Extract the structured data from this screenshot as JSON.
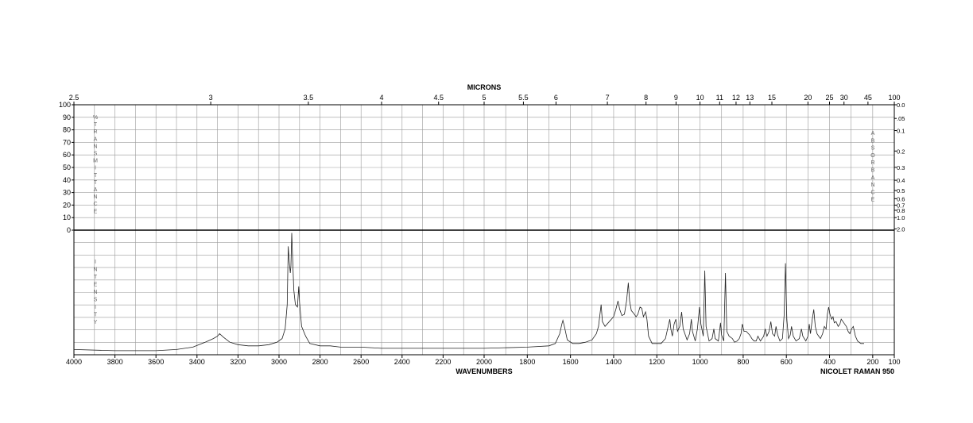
{
  "chart_data": {
    "type": "line",
    "title": "",
    "top_axis": {
      "label": "MICRONS",
      "ticks": [
        {
          "label": "2.5",
          "at": 4000
        },
        {
          "label": "3",
          "at": 3333
        },
        {
          "label": "3.5",
          "at": 2857
        },
        {
          "label": "4",
          "at": 2500
        },
        {
          "label": "4.5",
          "at": 2222
        },
        {
          "label": "5",
          "at": 2000
        },
        {
          "label": "5.5",
          "at": 1818
        },
        {
          "label": "6",
          "at": 1667
        },
        {
          "label": "7",
          "at": 1429
        },
        {
          "label": "8",
          "at": 1250
        },
        {
          "label": "9",
          "at": 1111
        },
        {
          "label": "10",
          "at": 1000
        },
        {
          "label": "11",
          "at": 909
        },
        {
          "label": "12",
          "at": 833
        },
        {
          "label": "13",
          "at": 769
        },
        {
          "label": "15",
          "at": 667
        },
        {
          "label": "20",
          "at": 500
        },
        {
          "label": "25",
          "at": 400
        },
        {
          "label": "30",
          "at": 333
        },
        {
          "label": "45",
          "at": 222
        },
        {
          "label": "100",
          "at": 100
        }
      ]
    },
    "bottom_axis": {
      "label": "WAVENUMBERS",
      "ticks": [
        "4000",
        "3800",
        "3600",
        "3400",
        "3200",
        "3000",
        "2800",
        "2600",
        "2400",
        "2200",
        "2000",
        "1800",
        "1600",
        "1400",
        "1200",
        "1000",
        "800",
        "600",
        "400",
        "200",
        "100"
      ],
      "xlim": [
        4000,
        100
      ]
    },
    "left_axis_upper": {
      "label_letters": [
        "%",
        "T",
        "R",
        "A",
        "N",
        "S",
        "M",
        "I",
        "T",
        "T",
        "A",
        "N",
        "C",
        "E"
      ],
      "ticks": [
        "100",
        "90",
        "80",
        "70",
        "60",
        "50",
        "40",
        "30",
        "20",
        "10",
        "0"
      ],
      "ylim": [
        0,
        100
      ]
    },
    "left_axis_lower": {
      "label_letters": [
        "I",
        "N",
        "T",
        "E",
        "N",
        "S",
        "I",
        "T",
        "Y"
      ]
    },
    "right_axis": {
      "label_letters": [
        "A",
        "B",
        "S",
        "O",
        "R",
        "B",
        "A",
        "N",
        "C",
        "E"
      ],
      "ticks": [
        "0.0",
        ".05",
        "0.1",
        "0.2",
        "0.3",
        "0.4",
        "0.5",
        "0.6",
        "0.7",
        "0.8",
        "1.0",
        "2.0"
      ]
    },
    "instrument": "NICOLET RAMAN 950",
    "grid": true,
    "series": [
      {
        "values_unit": "relative intensity (0-1)",
        "points": [
          [
            4000,
            0.03
          ],
          [
            3800,
            0.02
          ],
          [
            3600,
            0.02
          ],
          [
            3500,
            0.03
          ],
          [
            3420,
            0.05
          ],
          [
            3360,
            0.09
          ],
          [
            3320,
            0.12
          ],
          [
            3300,
            0.14
          ],
          [
            3290,
            0.16
          ],
          [
            3270,
            0.13
          ],
          [
            3240,
            0.09
          ],
          [
            3200,
            0.07
          ],
          [
            3150,
            0.06
          ],
          [
            3100,
            0.06
          ],
          [
            3050,
            0.07
          ],
          [
            3010,
            0.09
          ],
          [
            2985,
            0.12
          ],
          [
            2970,
            0.2
          ],
          [
            2960,
            0.4
          ],
          [
            2955,
            0.88
          ],
          [
            2950,
            0.75
          ],
          [
            2945,
            0.66
          ],
          [
            2942,
            0.72
          ],
          [
            2938,
            0.99
          ],
          [
            2934,
            0.8
          ],
          [
            2928,
            0.52
          ],
          [
            2920,
            0.4
          ],
          [
            2910,
            0.38
          ],
          [
            2904,
            0.55
          ],
          [
            2900,
            0.42
          ],
          [
            2890,
            0.22
          ],
          [
            2870,
            0.14
          ],
          [
            2850,
            0.08
          ],
          [
            2800,
            0.06
          ],
          [
            2750,
            0.06
          ],
          [
            2700,
            0.05
          ],
          [
            2600,
            0.05
          ],
          [
            2500,
            0.04
          ],
          [
            2400,
            0.04
          ],
          [
            2200,
            0.04
          ],
          [
            2000,
            0.04
          ],
          [
            1800,
            0.05
          ],
          [
            1700,
            0.06
          ],
          [
            1670,
            0.08
          ],
          [
            1650,
            0.16
          ],
          [
            1640,
            0.24
          ],
          [
            1635,
            0.27
          ],
          [
            1628,
            0.22
          ],
          [
            1615,
            0.11
          ],
          [
            1590,
            0.08
          ],
          [
            1560,
            0.08
          ],
          [
            1530,
            0.09
          ],
          [
            1500,
            0.11
          ],
          [
            1480,
            0.16
          ],
          [
            1470,
            0.22
          ],
          [
            1458,
            0.4
          ],
          [
            1452,
            0.26
          ],
          [
            1440,
            0.22
          ],
          [
            1420,
            0.26
          ],
          [
            1400,
            0.3
          ],
          [
            1390,
            0.36
          ],
          [
            1380,
            0.43
          ],
          [
            1372,
            0.36
          ],
          [
            1362,
            0.31
          ],
          [
            1350,
            0.32
          ],
          [
            1340,
            0.43
          ],
          [
            1332,
            0.58
          ],
          [
            1326,
            0.43
          ],
          [
            1318,
            0.35
          ],
          [
            1308,
            0.33
          ],
          [
            1296,
            0.3
          ],
          [
            1288,
            0.32
          ],
          [
            1278,
            0.38
          ],
          [
            1270,
            0.37
          ],
          [
            1262,
            0.3
          ],
          [
            1252,
            0.34
          ],
          [
            1246,
            0.28
          ],
          [
            1238,
            0.14
          ],
          [
            1222,
            0.08
          ],
          [
            1200,
            0.08
          ],
          [
            1180,
            0.08
          ],
          [
            1160,
            0.12
          ],
          [
            1150,
            0.2
          ],
          [
            1140,
            0.28
          ],
          [
            1135,
            0.2
          ],
          [
            1128,
            0.14
          ],
          [
            1120,
            0.24
          ],
          [
            1112,
            0.28
          ],
          [
            1104,
            0.18
          ],
          [
            1094,
            0.22
          ],
          [
            1085,
            0.34
          ],
          [
            1078,
            0.2
          ],
          [
            1060,
            0.11
          ],
          [
            1048,
            0.16
          ],
          [
            1040,
            0.28
          ],
          [
            1035,
            0.18
          ],
          [
            1022,
            0.1
          ],
          [
            1012,
            0.2
          ],
          [
            1002,
            0.38
          ],
          [
            996,
            0.24
          ],
          [
            985,
            0.14
          ],
          [
            978,
            0.68
          ],
          [
            972,
            0.22
          ],
          [
            958,
            0.1
          ],
          [
            944,
            0.12
          ],
          [
            936,
            0.2
          ],
          [
            930,
            0.12
          ],
          [
            915,
            0.1
          ],
          [
            905,
            0.25
          ],
          [
            900,
            0.15
          ],
          [
            890,
            0.1
          ],
          [
            882,
            0.66
          ],
          [
            876,
            0.18
          ],
          [
            865,
            0.14
          ],
          [
            850,
            0.12
          ],
          [
            840,
            0.09
          ],
          [
            828,
            0.1
          ],
          [
            818,
            0.12
          ],
          [
            810,
            0.16
          ],
          [
            804,
            0.24
          ],
          [
            796,
            0.18
          ],
          [
            786,
            0.18
          ],
          [
            770,
            0.15
          ],
          [
            760,
            0.12
          ],
          [
            750,
            0.1
          ],
          [
            740,
            0.1
          ],
          [
            732,
            0.14
          ],
          [
            720,
            0.1
          ],
          [
            705,
            0.14
          ],
          [
            698,
            0.2
          ],
          [
            690,
            0.14
          ],
          [
            680,
            0.18
          ],
          [
            672,
            0.26
          ],
          [
            664,
            0.16
          ],
          [
            654,
            0.14
          ],
          [
            648,
            0.22
          ],
          [
            640,
            0.15
          ],
          [
            630,
            0.1
          ],
          [
            618,
            0.12
          ],
          [
            610,
            0.32
          ],
          [
            604,
            0.74
          ],
          [
            598,
            0.28
          ],
          [
            590,
            0.12
          ],
          [
            582,
            0.15
          ],
          [
            576,
            0.22
          ],
          [
            568,
            0.14
          ],
          [
            555,
            0.1
          ],
          [
            540,
            0.12
          ],
          [
            530,
            0.2
          ],
          [
            524,
            0.14
          ],
          [
            510,
            0.1
          ],
          [
            500,
            0.14
          ],
          [
            494,
            0.24
          ],
          [
            488,
            0.16
          ],
          [
            480,
            0.28
          ],
          [
            473,
            0.36
          ],
          [
            466,
            0.22
          ],
          [
            458,
            0.16
          ],
          [
            450,
            0.14
          ],
          [
            442,
            0.12
          ],
          [
            432,
            0.16
          ],
          [
            424,
            0.22
          ],
          [
            416,
            0.2
          ],
          [
            410,
            0.32
          ],
          [
            404,
            0.38
          ],
          [
            398,
            0.32
          ],
          [
            390,
            0.28
          ],
          [
            384,
            0.3
          ],
          [
            378,
            0.25
          ],
          [
            370,
            0.26
          ],
          [
            360,
            0.22
          ],
          [
            352,
            0.24
          ],
          [
            346,
            0.28
          ],
          [
            338,
            0.26
          ],
          [
            330,
            0.24
          ],
          [
            322,
            0.22
          ],
          [
            314,
            0.18
          ],
          [
            306,
            0.16
          ],
          [
            298,
            0.2
          ],
          [
            290,
            0.22
          ],
          [
            280,
            0.14
          ],
          [
            270,
            0.1
          ],
          [
            255,
            0.08
          ],
          [
            240,
            0.08
          ]
        ]
      }
    ]
  }
}
